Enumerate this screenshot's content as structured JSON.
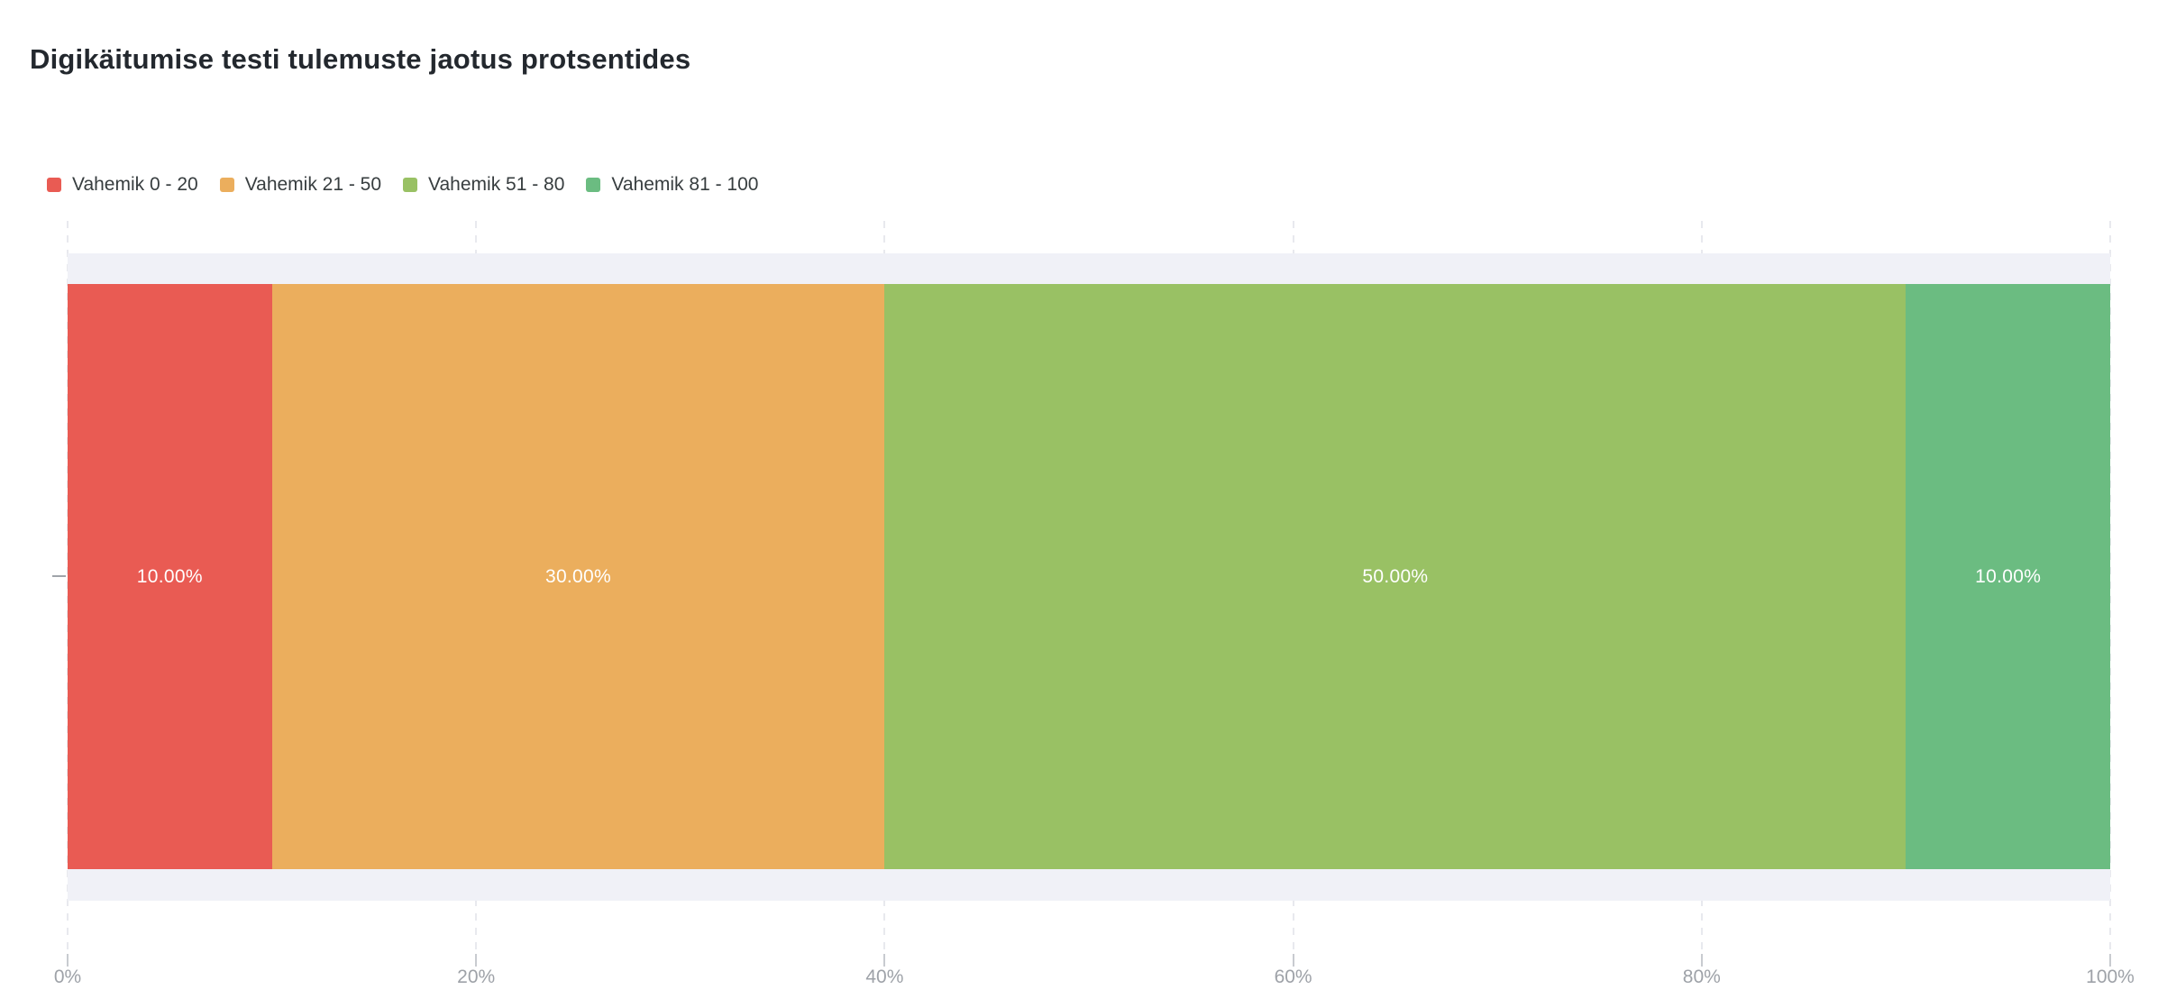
{
  "chart": {
    "title": "Digikäitumise testi tulemuste jaotus protsentides",
    "legend": [
      {
        "label": "Vahemik 0 - 20",
        "color": "#e95b53"
      },
      {
        "label": "Vahemik 21 - 50",
        "color": "#ebae5d"
      },
      {
        "label": "Vahemik 51 - 80",
        "color": "#99c164"
      },
      {
        "label": "Vahemik 81 - 100",
        "color": "#6bbc81"
      }
    ],
    "segments": [
      {
        "name": "Vahemik 0 - 20",
        "value": 10,
        "label": "10.00%",
        "color": "#e95b53"
      },
      {
        "name": "Vahemik 21 - 50",
        "value": 30,
        "label": "30.00%",
        "color": "#ebae5d"
      },
      {
        "name": "Vahemik 51 - 80",
        "value": 50,
        "label": "50.00%",
        "color": "#99c164"
      },
      {
        "name": "Vahemik 81 - 100",
        "value": 10,
        "label": "10.00%",
        "color": "#6bbc81"
      }
    ],
    "x_ticks": [
      "0%",
      "20%",
      "40%",
      "60%",
      "80%",
      "100%"
    ],
    "colors": {
      "row_band": "#f0f1f7",
      "gridline": "#e8e9ee",
      "axis_label": "#9ea2a8",
      "legend_text": "#373d3f",
      "title_text": "#23282e",
      "data_label": "#ffffff"
    }
  },
  "chart_data": {
    "type": "bar",
    "orientation": "horizontal",
    "stacked": true,
    "title": "Digikäitumise testi tulemuste jaotus protsentides",
    "categories": [
      ""
    ],
    "series": [
      {
        "name": "Vahemik 0 - 20",
        "values": [
          10.0
        ],
        "color": "#e95b53"
      },
      {
        "name": "Vahemik 21 - 50",
        "values": [
          30.0
        ],
        "color": "#ebae5d"
      },
      {
        "name": "Vahemik 51 - 80",
        "values": [
          50.0
        ],
        "color": "#99c164"
      },
      {
        "name": "Vahemik 81 - 100",
        "values": [
          10.0
        ],
        "color": "#6bbc81"
      }
    ],
    "data_labels": [
      "10.00%",
      "30.00%",
      "50.00%",
      "10.00%"
    ],
    "xlabel": "",
    "ylabel": "",
    "xlim": [
      0,
      100
    ],
    "x_tick_labels": [
      "0%",
      "20%",
      "40%",
      "60%",
      "80%",
      "100%"
    ],
    "grid": "dashed-vertical",
    "legend_position": "top-left"
  }
}
